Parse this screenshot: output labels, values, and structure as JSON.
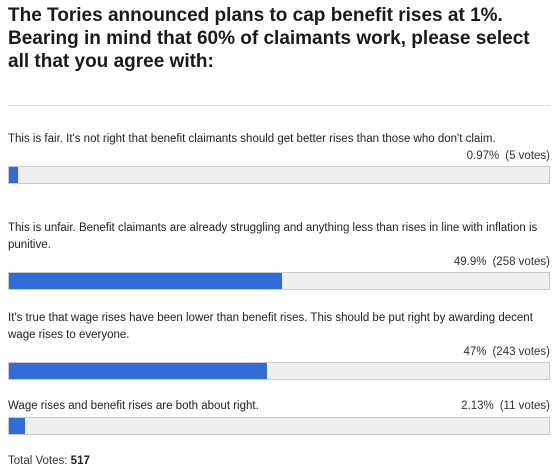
{
  "poll": {
    "title": "The Tories announced plans to cap benefit rises at 1%. Bearing in mind that 60% of claimants work, please select all that you agree with:",
    "options": [
      {
        "label": "This is fair. It's not right that benefit claimants should get better rises than those who don't claim.",
        "percent_text": "0.97%",
        "votes_text": "(5 votes)",
        "fraction": 0.0097
      },
      {
        "label": "This is unfair. Benefit claimants are already struggling and anything less than rises in line with inflation is punitive.",
        "percent_text": "49.9%",
        "votes_text": "(258 votes)",
        "fraction": 0.499
      },
      {
        "label": "It's true that wage rises have been lower than benefit rises. This should be put right by awarding decent wage rises to everyone.",
        "percent_text": "47%",
        "votes_text": "(243 votes)",
        "fraction": 0.47
      },
      {
        "label": "Wage rises and benefit rises are both about right.",
        "percent_text": "2.13%",
        "votes_text": "(11 votes)",
        "fraction": 0.0213
      }
    ],
    "total_label": "Total Votes:",
    "total_value": "517"
  },
  "colors": {
    "bar_fill": "#2f6dd9",
    "bar_track": "#efefef"
  }
}
